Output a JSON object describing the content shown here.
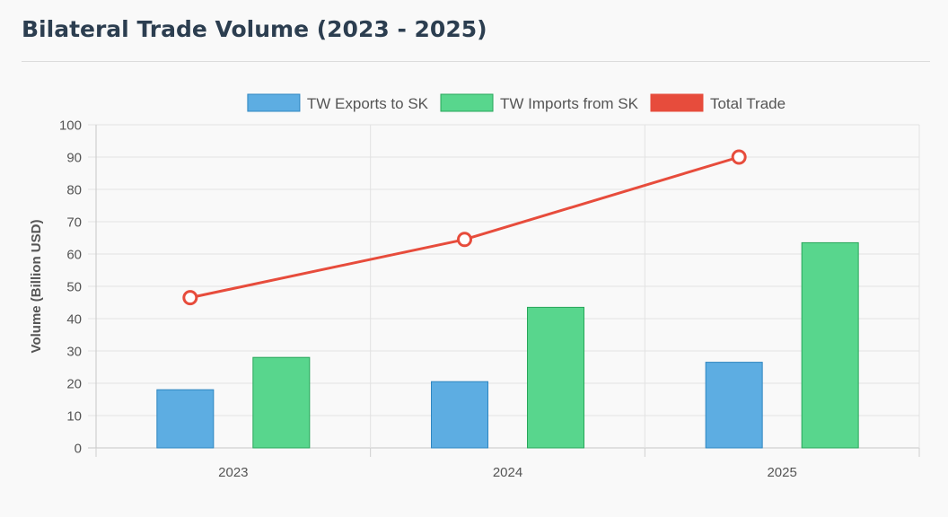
{
  "page": {
    "title": "Bilateral Trade Volume (2023 - 2025)"
  },
  "chart_data": {
    "type": "bar",
    "title": "Bilateral Trade Volume (2023 - 2025)",
    "categories": [
      "2023",
      "2024",
      "2025"
    ],
    "series": [
      {
        "name": "TW Exports to SK",
        "type": "bar",
        "values": [
          18,
          20.5,
          26.5
        ],
        "color": "#5dade2",
        "border": "#2e86c1"
      },
      {
        "name": "TW Imports from SK",
        "type": "bar",
        "values": [
          28,
          43.5,
          63.5
        ],
        "color": "#58d68d",
        "border": "#28a65a"
      },
      {
        "name": "Total Trade",
        "type": "line",
        "values": [
          46.5,
          64.5,
          90
        ],
        "color": "#e74c3c",
        "border": "#e74c3c"
      }
    ],
    "xlabel": "",
    "ylabel": "Volume (Billion USD)",
    "ylim": [
      0,
      100
    ],
    "yticks": [
      0,
      10,
      20,
      30,
      40,
      50,
      60,
      70,
      80,
      90,
      100
    ],
    "grid": true,
    "legend_position": "top"
  }
}
